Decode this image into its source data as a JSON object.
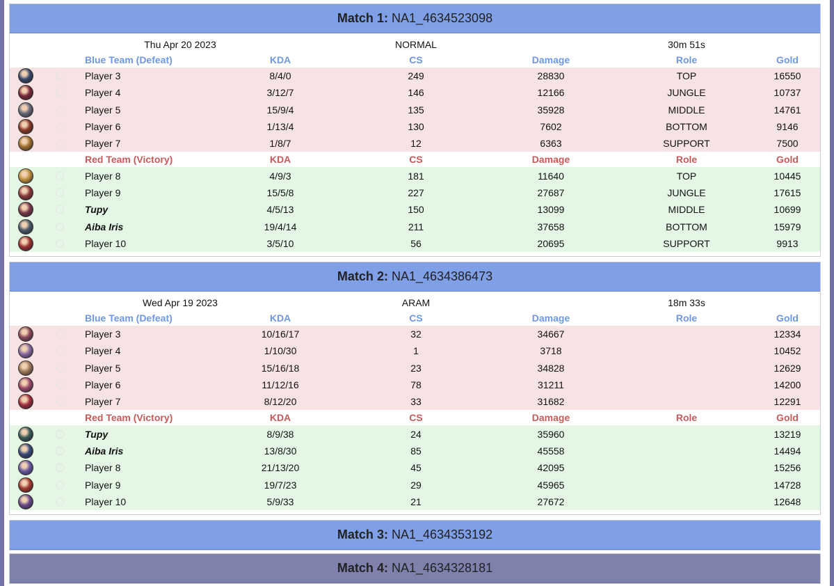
{
  "header_prefix": "Match",
  "columns": {
    "kda": "KDA",
    "cs": "CS",
    "damage": "Damage",
    "role": "Role",
    "gold": "Gold"
  },
  "matches": [
    {
      "number": "1:",
      "id": "NA1_4634523098",
      "date": "Thu Apr 20 2023",
      "mode": "NORMAL",
      "duration": "30m 51s",
      "blue_team": "Blue Team (Defeat)",
      "red_team": "Red Team (Victory)",
      "blue_players": [
        {
          "name": "Player 3",
          "kda": "8/4/0",
          "cs": "249",
          "damage": "28830",
          "role": "TOP",
          "gold": "16550",
          "avatar_color": "#3a4a6a"
        },
        {
          "name": "Player 4",
          "kda": "3/12/7",
          "cs": "146",
          "damage": "12166",
          "role": "JUNGLE",
          "gold": "10737",
          "avatar_color": "#7a2a3a"
        },
        {
          "name": "Player 5",
          "kda": "15/9/4",
          "cs": "135",
          "damage": "35928",
          "role": "MIDDLE",
          "gold": "14761",
          "avatar_color": "#6a6a7a"
        },
        {
          "name": "Player 6",
          "kda": "1/13/4",
          "cs": "130",
          "damage": "7602",
          "role": "BOTTOM",
          "gold": "9146",
          "avatar_color": "#8a3a2a"
        },
        {
          "name": "Player 7",
          "kda": "1/8/7",
          "cs": "12",
          "damage": "6363",
          "role": "SUPPORT",
          "gold": "7500",
          "avatar_color": "#a07030"
        }
      ],
      "red_players": [
        {
          "name": "Player 8",
          "kda": "4/9/3",
          "cs": "181",
          "damage": "11640",
          "role": "TOP",
          "gold": "10445",
          "avatar_color": "#c09040"
        },
        {
          "name": "Player 9",
          "kda": "15/5/8",
          "cs": "227",
          "damage": "27687",
          "role": "JUNGLE",
          "gold": "17615",
          "avatar_color": "#8a3a3a"
        },
        {
          "name": "Tupy",
          "kda": "4/5/13",
          "cs": "150",
          "damage": "13099",
          "role": "MIDDLE",
          "gold": "10699",
          "avatar_color": "#7a3a4a",
          "highlight": true
        },
        {
          "name": "Aiba Iris",
          "kda": "19/4/14",
          "cs": "211",
          "damage": "37658",
          "role": "BOTTOM",
          "gold": "15979",
          "avatar_color": "#4a5a6a",
          "highlight": true
        },
        {
          "name": "Player 10",
          "kda": "3/5/10",
          "cs": "56",
          "damage": "20695",
          "role": "SUPPORT",
          "gold": "9913",
          "avatar_color": "#9a3030"
        }
      ]
    },
    {
      "number": "2:",
      "id": "NA1_4634386473",
      "date": "Wed Apr 19 2023",
      "mode": "ARAM",
      "duration": "18m 33s",
      "blue_team": "Blue Team (Defeat)",
      "red_team": "Red Team (Victory)",
      "blue_players": [
        {
          "name": "Player 3",
          "kda": "10/16/17",
          "cs": "32",
          "damage": "34667",
          "role": "",
          "gold": "12334",
          "avatar_color": "#8a4a5a"
        },
        {
          "name": "Player 4",
          "kda": "1/10/30",
          "cs": "1",
          "damage": "3718",
          "role": "",
          "gold": "10452",
          "avatar_color": "#8a6aa0"
        },
        {
          "name": "Player 5",
          "kda": "15/16/18",
          "cs": "23",
          "damage": "34828",
          "role": "",
          "gold": "12629",
          "avatar_color": "#a07a5a"
        },
        {
          "name": "Player 6",
          "kda": "11/12/16",
          "cs": "78",
          "damage": "31211",
          "role": "",
          "gold": "14200",
          "avatar_color": "#9a4a6a"
        },
        {
          "name": "Player 7",
          "kda": "8/12/20",
          "cs": "33",
          "damage": "31682",
          "role": "",
          "gold": "12291",
          "avatar_color": "#a03040"
        }
      ],
      "red_players": [
        {
          "name": "Tupy",
          "kda": "8/9/38",
          "cs": "24",
          "damage": "35960",
          "role": "",
          "gold": "13219",
          "avatar_color": "#3a5a5a",
          "highlight": true
        },
        {
          "name": "Aiba Iris",
          "kda": "13/8/30",
          "cs": "85",
          "damage": "45558",
          "role": "",
          "gold": "14494",
          "avatar_color": "#3a4a7a",
          "highlight": true
        },
        {
          "name": "Player 8",
          "kda": "21/13/20",
          "cs": "45",
          "damage": "42095",
          "role": "",
          "gold": "15256",
          "avatar_color": "#6a5aa0"
        },
        {
          "name": "Player 9",
          "kda": "19/7/23",
          "cs": "29",
          "damage": "45965",
          "role": "",
          "gold": "14728",
          "avatar_color": "#a03a30"
        },
        {
          "name": "Player 10",
          "kda": "5/9/33",
          "cs": "21",
          "damage": "27672",
          "role": "",
          "gold": "12648",
          "avatar_color": "#6a4a8a"
        }
      ]
    },
    {
      "number": "3:",
      "id": "NA1_4634353192"
    },
    {
      "number": "4:",
      "id": "NA1_4634328181"
    }
  ]
}
